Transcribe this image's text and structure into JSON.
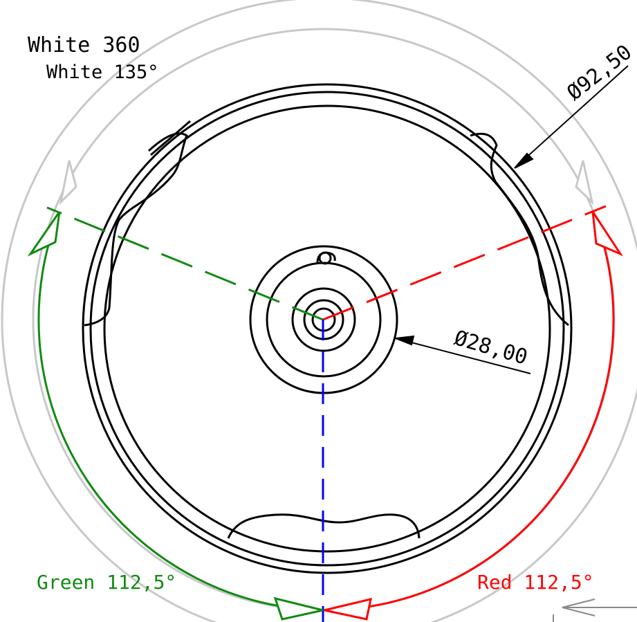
{
  "labels": {
    "white_360": "White 360",
    "white_135": "White 135°",
    "diameter_outer": "Ø92,50",
    "diameter_hub": "Ø28,00",
    "green_angle": "Green 112,5°",
    "red_angle": "Red 112,5°"
  },
  "colors": {
    "ink": "#000000",
    "white_ring": "#c8c8c8",
    "green": "#118a11",
    "red": "#ff0000",
    "blue": "#0000ff"
  }
}
